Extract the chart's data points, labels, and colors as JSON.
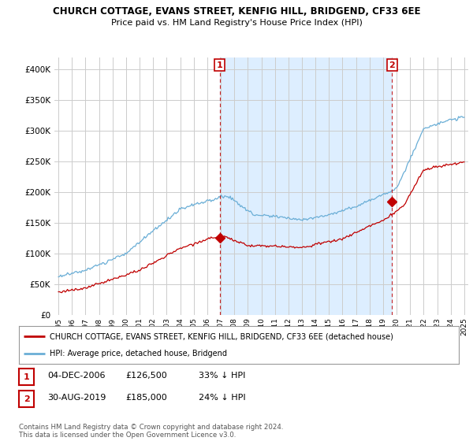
{
  "title": "CHURCH COTTAGE, EVANS STREET, KENFIG HILL, BRIDGEND, CF33 6EE",
  "subtitle": "Price paid vs. HM Land Registry's House Price Index (HPI)",
  "legend_line1": "CHURCH COTTAGE, EVANS STREET, KENFIG HILL, BRIDGEND, CF33 6EE (detached house)",
  "legend_line2": "HPI: Average price, detached house, Bridgend",
  "annotation1_date": "04-DEC-2006",
  "annotation1_price": "£126,500",
  "annotation1_hpi": "33% ↓ HPI",
  "annotation2_date": "30-AUG-2019",
  "annotation2_price": "£185,000",
  "annotation2_hpi": "24% ↓ HPI",
  "copyright": "Contains HM Land Registry data © Crown copyright and database right 2024.\nThis data is licensed under the Open Government Licence v3.0.",
  "hpi_color": "#6aaed6",
  "price_color": "#c00000",
  "shade_color": "#ddeeff",
  "annotation_color": "#c00000",
  "background_color": "#ffffff",
  "grid_color": "#cccccc",
  "ylim": [
    0,
    420000
  ],
  "yticks": [
    0,
    50000,
    100000,
    150000,
    200000,
    250000,
    300000,
    350000,
    400000
  ],
  "purchase1_year": 2006.92,
  "purchase1_value": 126500,
  "purchase2_year": 2019.67,
  "purchase2_value": 185000
}
